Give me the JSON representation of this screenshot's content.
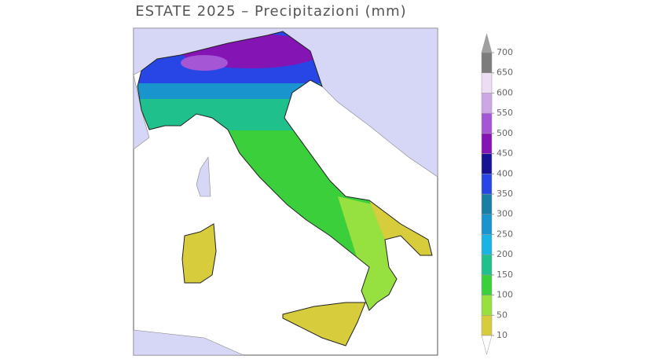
{
  "title": "ESTATE 2025 – Precipitazioni (mm)",
  "legend": {
    "ticks": [
      10,
      50,
      100,
      150,
      200,
      250,
      300,
      350,
      400,
      450,
      500,
      550,
      600,
      650,
      700
    ],
    "colors": [
      "#d6cc3c",
      "#96e040",
      "#3ccf3c",
      "#20c08c",
      "#1ab4e4",
      "#1a94cc",
      "#1a7ea2",
      "#2846e6",
      "#141494",
      "#8414b4",
      "#a456d4",
      "#cca6e6",
      "#ecdcf4",
      "#7c7c7c"
    ],
    "over_color": "#a0a0a0",
    "under_color": "#ffffff"
  }
}
